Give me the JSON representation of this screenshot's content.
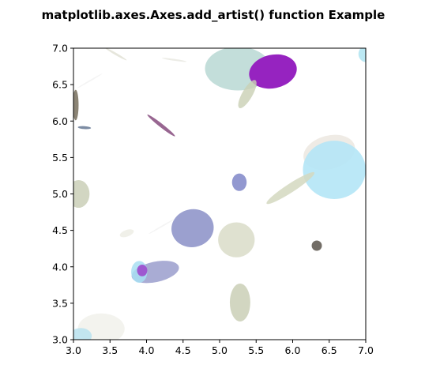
{
  "chart_data": {
    "type": "scatter",
    "title": "matplotlib.axes.Axes.add_artist() function Example",
    "xlabel": "",
    "ylabel": "",
    "xlim": [
      3.0,
      7.0
    ],
    "ylim": [
      3.0,
      7.0
    ],
    "xticks": [
      "3.0",
      "3.5",
      "4.0",
      "4.5",
      "5.0",
      "5.5",
      "6.0",
      "6.5",
      "7.0"
    ],
    "yticks": [
      "3.0",
      "3.5",
      "4.0",
      "4.5",
      "5.0",
      "5.5",
      "6.0",
      "6.5",
      "7.0"
    ],
    "grid": false,
    "ellipses": [
      {
        "cx": 5.25,
        "cy": 6.72,
        "w": 0.9,
        "h": 0.6,
        "angle": 0,
        "color": "#b9d8d3",
        "alpha": 0.85
      },
      {
        "cx": 5.73,
        "cy": 6.68,
        "w": 0.66,
        "h": 0.46,
        "angle": -12,
        "color": "#9623c0",
        "alpha": 1.0
      },
      {
        "cx": 5.38,
        "cy": 6.37,
        "w": 0.44,
        "h": 0.14,
        "angle": -60,
        "color": "#c9cfb4",
        "alpha": 0.8
      },
      {
        "cx": 7.0,
        "cy": 6.92,
        "w": 0.2,
        "h": 0.22,
        "angle": 0,
        "color": "#b4e6f2",
        "alpha": 0.9
      },
      {
        "cx": 3.58,
        "cy": 6.92,
        "w": 0.34,
        "h": 0.03,
        "angle": 30,
        "color": "#dcdccd",
        "alpha": 0.7
      },
      {
        "cx": 4.38,
        "cy": 6.84,
        "w": 0.34,
        "h": 0.025,
        "angle": 8,
        "color": "#e4e4dc",
        "alpha": 0.7
      },
      {
        "cx": 3.22,
        "cy": 6.55,
        "w": 0.4,
        "h": 0.02,
        "angle": -30,
        "color": "#ececec",
        "alpha": 0.6
      },
      {
        "cx": 3.03,
        "cy": 6.22,
        "w": 0.08,
        "h": 0.42,
        "angle": 0,
        "color": "#6e6553",
        "alpha": 0.8
      },
      {
        "cx": 4.2,
        "cy": 5.94,
        "w": 0.48,
        "h": 0.05,
        "angle": 38,
        "color": "#8d5585",
        "alpha": 0.9
      },
      {
        "cx": 3.15,
        "cy": 5.91,
        "w": 0.18,
        "h": 0.04,
        "angle": 4,
        "color": "#6e8099",
        "alpha": 0.9
      },
      {
        "cx": 6.5,
        "cy": 5.57,
        "w": 0.72,
        "h": 0.46,
        "angle": -15,
        "color": "#ece8e0",
        "alpha": 0.85
      },
      {
        "cx": 6.57,
        "cy": 5.33,
        "w": 0.86,
        "h": 0.8,
        "angle": 0,
        "color": "#b4e6f6",
        "alpha": 0.9
      },
      {
        "cx": 5.97,
        "cy": 5.08,
        "w": 0.78,
        "h": 0.12,
        "angle": -33,
        "color": "#d3d8c0",
        "alpha": 0.85
      },
      {
        "cx": 5.27,
        "cy": 5.16,
        "w": 0.2,
        "h": 0.24,
        "angle": 0,
        "color": "#7f86c8",
        "alpha": 0.85
      },
      {
        "cx": 3.07,
        "cy": 5.0,
        "w": 0.3,
        "h": 0.38,
        "angle": 0,
        "color": "#cdd1bb",
        "alpha": 0.9
      },
      {
        "cx": 4.63,
        "cy": 4.53,
        "w": 0.58,
        "h": 0.52,
        "angle": -10,
        "color": "#9096ca",
        "alpha": 0.9
      },
      {
        "cx": 5.23,
        "cy": 4.37,
        "w": 0.5,
        "h": 0.48,
        "angle": 0,
        "color": "#d7dac4",
        "alpha": 0.8
      },
      {
        "cx": 3.73,
        "cy": 4.46,
        "w": 0.2,
        "h": 0.09,
        "angle": -20,
        "color": "#eaeae0",
        "alpha": 0.7
      },
      {
        "cx": 4.2,
        "cy": 4.55,
        "w": 0.4,
        "h": 0.02,
        "angle": -30,
        "color": "#ededed",
        "alpha": 0.6
      },
      {
        "cx": 6.33,
        "cy": 4.29,
        "w": 0.14,
        "h": 0.14,
        "angle": 0,
        "color": "#726d66",
        "alpha": 1.0
      },
      {
        "cx": 4.12,
        "cy": 3.93,
        "w": 0.66,
        "h": 0.28,
        "angle": -12,
        "color": "#9a9dcc",
        "alpha": 0.85
      },
      {
        "cx": 3.9,
        "cy": 3.93,
        "w": 0.22,
        "h": 0.3,
        "angle": 0,
        "color": "#a8def2",
        "alpha": 0.85
      },
      {
        "cx": 3.94,
        "cy": 3.95,
        "w": 0.14,
        "h": 0.16,
        "angle": 0,
        "color": "#9b2ec5",
        "alpha": 0.75
      },
      {
        "cx": 5.28,
        "cy": 3.51,
        "w": 0.28,
        "h": 0.52,
        "angle": 0,
        "color": "#cdd2ba",
        "alpha": 0.9
      },
      {
        "cx": 3.38,
        "cy": 3.15,
        "w": 0.64,
        "h": 0.42,
        "angle": 0,
        "color": "#f2f2ec",
        "alpha": 0.9
      },
      {
        "cx": 3.1,
        "cy": 3.05,
        "w": 0.3,
        "h": 0.22,
        "angle": 0,
        "color": "#b9e2ee",
        "alpha": 0.85
      }
    ]
  }
}
